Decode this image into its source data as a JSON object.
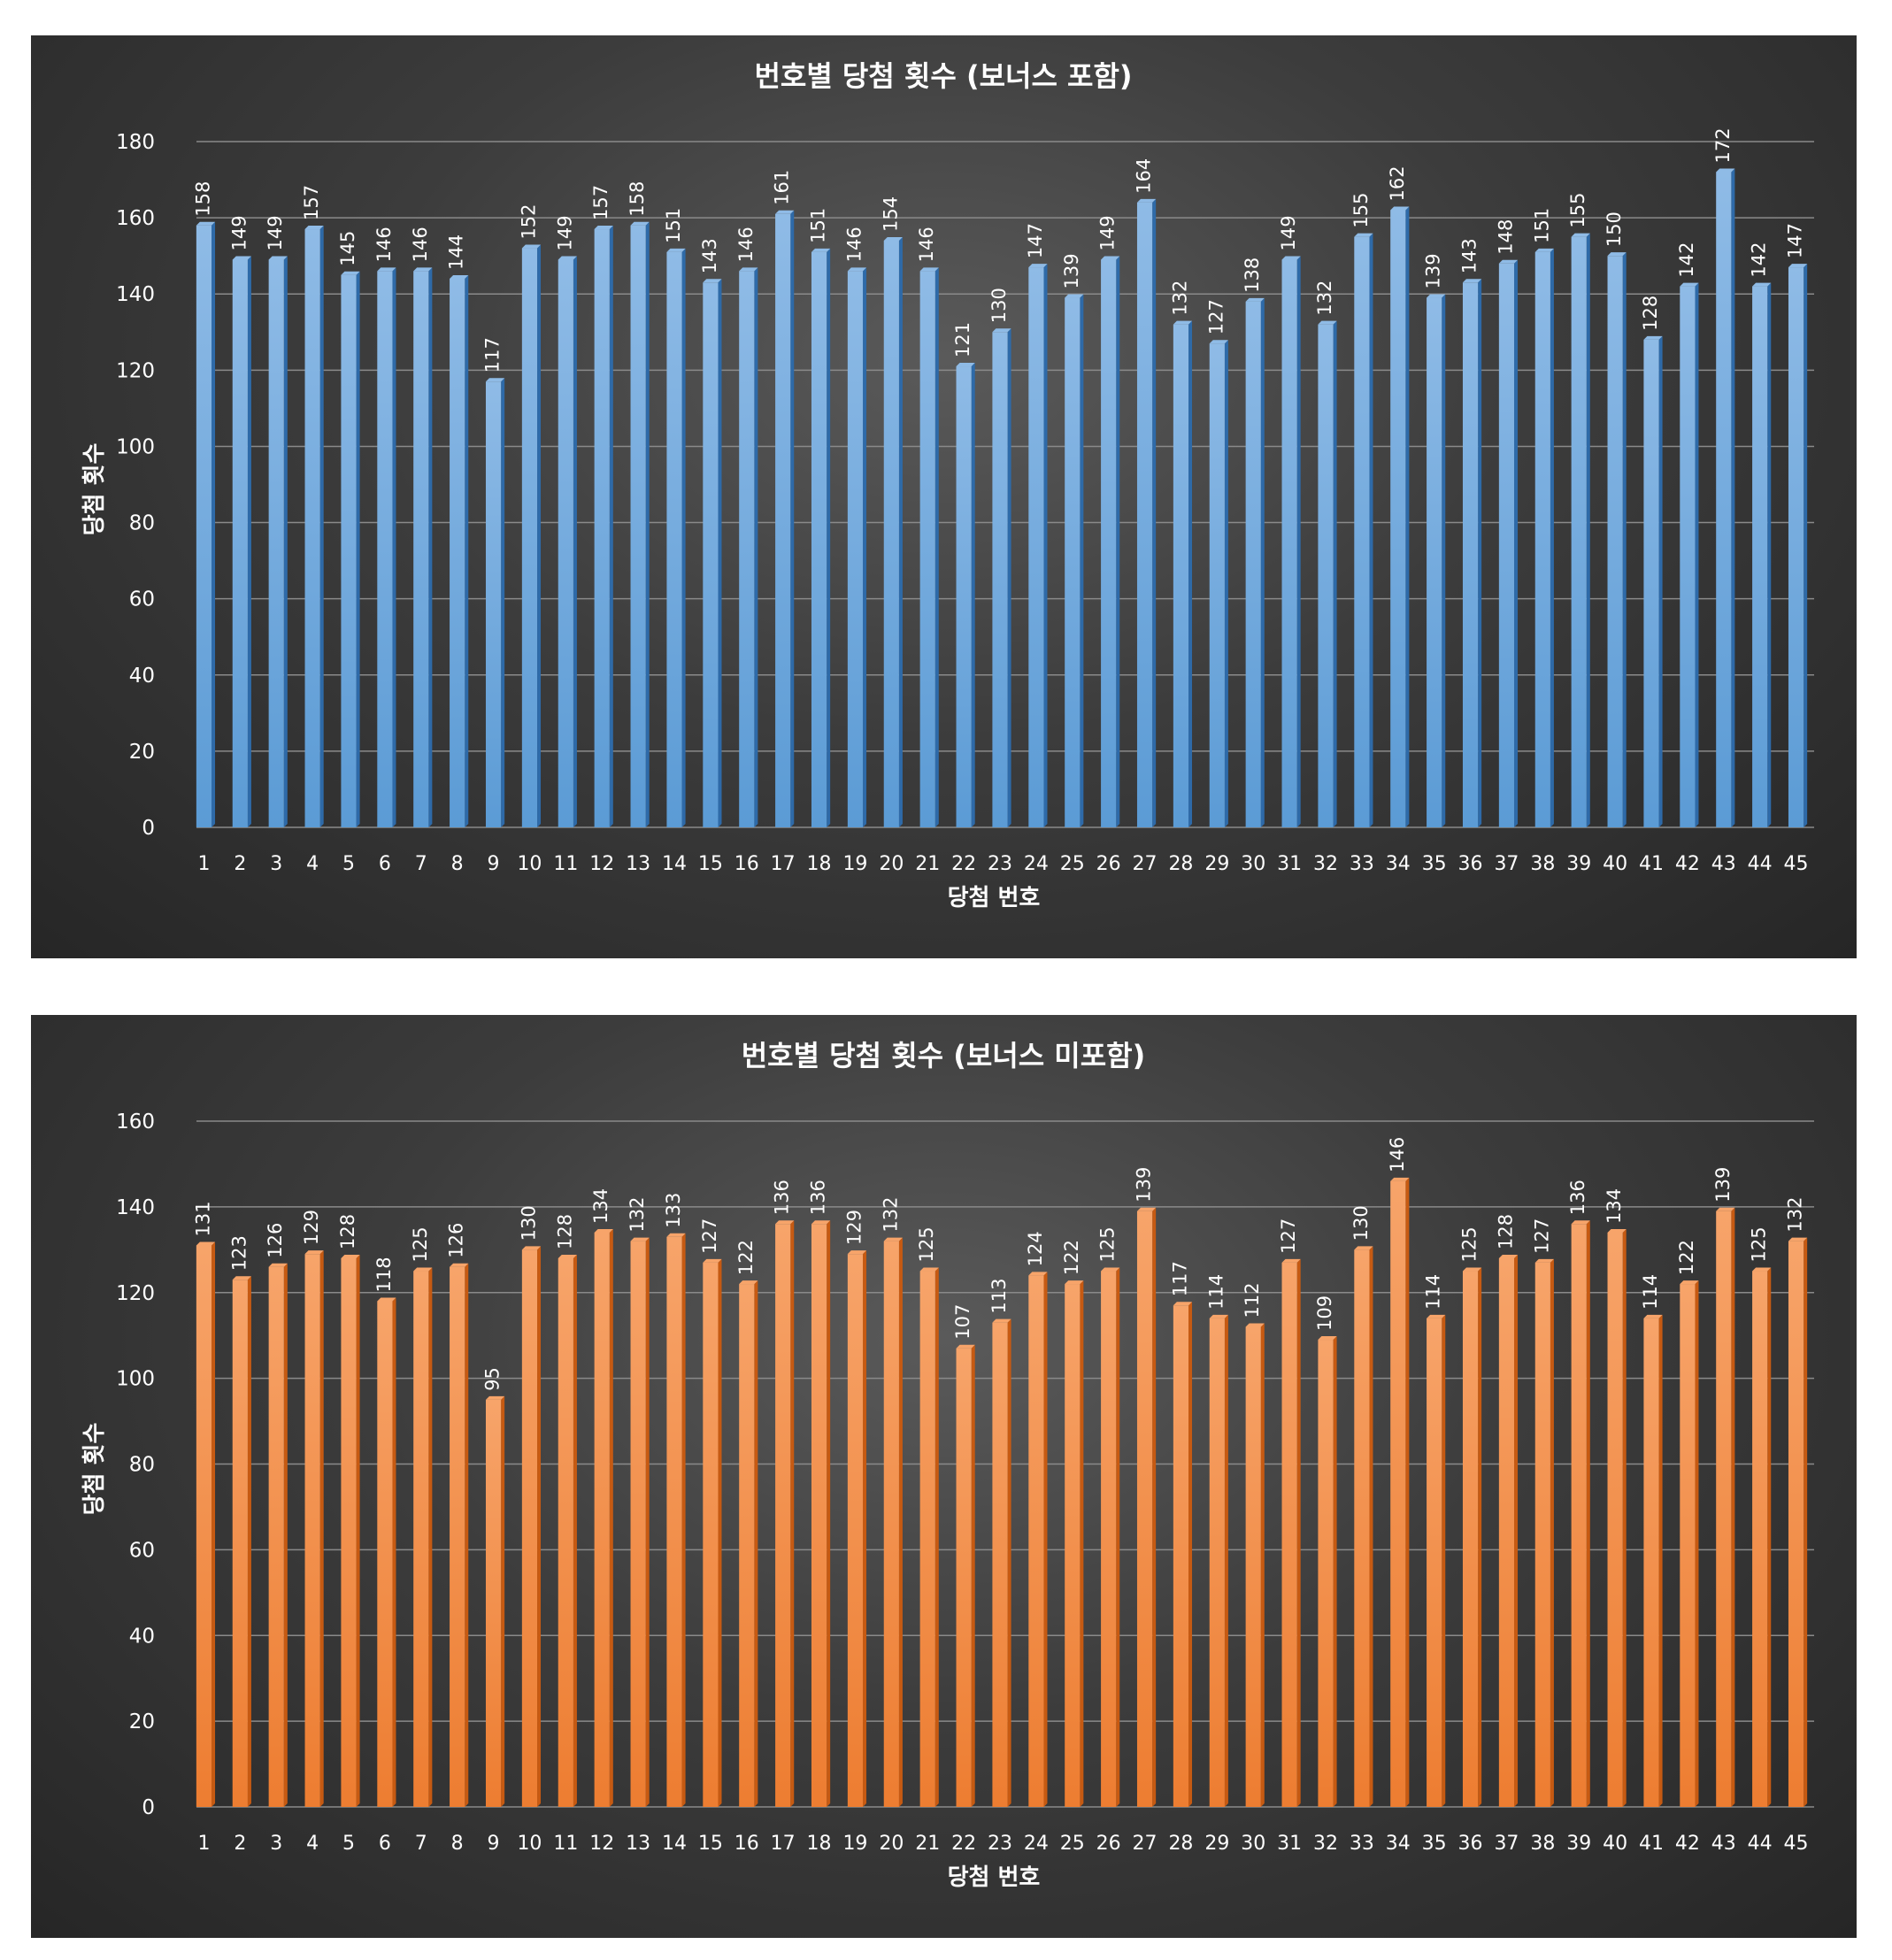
{
  "chart_data": [
    {
      "type": "bar",
      "title": "번호별 당첨 횟수 (보너스 포함)",
      "xlabel": "당첨 번호",
      "ylabel": "당첨 횟수",
      "ylim": [
        0,
        180
      ],
      "yticks": [
        "0",
        "20",
        "40",
        "60",
        "80",
        "100",
        "120",
        "140",
        "160",
        "180"
      ],
      "categories": [
        "1",
        "2",
        "3",
        "4",
        "5",
        "6",
        "7",
        "8",
        "9",
        "10",
        "11",
        "12",
        "13",
        "14",
        "15",
        "16",
        "17",
        "18",
        "19",
        "20",
        "21",
        "22",
        "23",
        "24",
        "25",
        "26",
        "27",
        "28",
        "29",
        "30",
        "31",
        "32",
        "33",
        "34",
        "35",
        "36",
        "37",
        "38",
        "39",
        "40",
        "41",
        "42",
        "43",
        "44",
        "45"
      ],
      "values": [
        158,
        149,
        149,
        157,
        145,
        146,
        146,
        144,
        117,
        152,
        149,
        157,
        158,
        151,
        143,
        146,
        161,
        151,
        146,
        154,
        146,
        121,
        130,
        147,
        139,
        149,
        164,
        132,
        127,
        138,
        149,
        132,
        155,
        162,
        139,
        143,
        148,
        151,
        155,
        150,
        128,
        142,
        172,
        142,
        147
      ],
      "color": "#5b9bd5",
      "grid": true,
      "legend": "none"
    },
    {
      "type": "bar",
      "title": "번호별 당첨 횟수 (보너스 미포함)",
      "xlabel": "당첨 번호",
      "ylabel": "당첨 횟수",
      "ylim": [
        0,
        160
      ],
      "yticks": [
        "0",
        "20",
        "40",
        "60",
        "80",
        "100",
        "120",
        "140",
        "160"
      ],
      "categories": [
        "1",
        "2",
        "3",
        "4",
        "5",
        "6",
        "7",
        "8",
        "9",
        "10",
        "11",
        "12",
        "13",
        "14",
        "15",
        "16",
        "17",
        "18",
        "19",
        "20",
        "21",
        "22",
        "23",
        "24",
        "25",
        "26",
        "27",
        "28",
        "29",
        "30",
        "31",
        "32",
        "33",
        "34",
        "35",
        "36",
        "37",
        "38",
        "39",
        "40",
        "41",
        "42",
        "43",
        "44",
        "45"
      ],
      "values": [
        131,
        123,
        126,
        129,
        128,
        118,
        125,
        126,
        95,
        130,
        128,
        134,
        132,
        133,
        127,
        122,
        136,
        136,
        129,
        132,
        125,
        107,
        113,
        124,
        122,
        125,
        139,
        117,
        114,
        112,
        127,
        109,
        130,
        146,
        114,
        125,
        128,
        127,
        136,
        134,
        114,
        122,
        139,
        125,
        132
      ],
      "color": "#ed7d31",
      "grid": true,
      "legend": "none"
    }
  ]
}
